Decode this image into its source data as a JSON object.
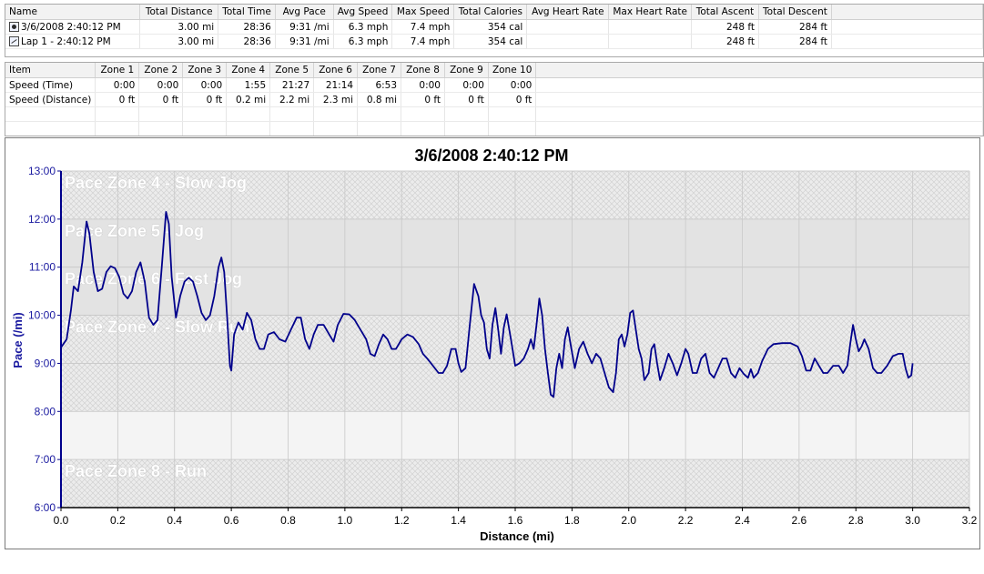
{
  "laps_table": {
    "columns": [
      "Name",
      "Total Distance",
      "Total Time",
      "Avg Pace",
      "Avg Speed",
      "Max Speed",
      "Total Calories",
      "Avg Heart Rate",
      "Max Heart Rate",
      "Total Ascent",
      "Total Descent"
    ],
    "rows": [
      {
        "icon": "run-icon",
        "name": "3/6/2008 2:40:12 PM",
        "total_distance": "3.00 mi",
        "total_time": "28:36",
        "avg_pace": "9:31 /mi",
        "avg_speed": "6.3 mph",
        "max_speed": "7.4 mph",
        "total_calories": "354 cal",
        "avg_heart_rate": "",
        "max_heart_rate": "",
        "total_ascent": "248 ft",
        "total_descent": "284 ft"
      },
      {
        "icon": "lap-icon",
        "name": "Lap 1 - 2:40:12 PM",
        "total_distance": "3.00 mi",
        "total_time": "28:36",
        "avg_pace": "9:31 /mi",
        "avg_speed": "6.3 mph",
        "max_speed": "7.4 mph",
        "total_calories": "354 cal",
        "avg_heart_rate": "",
        "max_heart_rate": "",
        "total_ascent": "248 ft",
        "total_descent": "284 ft"
      }
    ]
  },
  "zones_table": {
    "columns": [
      "Item",
      "Zone 1",
      "Zone 2",
      "Zone 3",
      "Zone 4",
      "Zone 5",
      "Zone 6",
      "Zone 7",
      "Zone 8",
      "Zone 9",
      "Zone 10"
    ],
    "rows": [
      {
        "item": "Speed (Time)",
        "values": [
          "0:00",
          "0:00",
          "0:00",
          "1:55",
          "21:27",
          "21:14",
          "6:53",
          "0:00",
          "0:00",
          "0:00"
        ]
      },
      {
        "item": "Speed (Distance)",
        "values": [
          "0 ft",
          "0 ft",
          "0 ft",
          "0.2 mi",
          "2.2 mi",
          "2.3 mi",
          "0.8 mi",
          "0 ft",
          "0 ft",
          "0 ft"
        ]
      }
    ]
  },
  "chart_data": {
    "type": "line",
    "title": "3/6/2008 2:40:12 PM",
    "xlabel": "Distance (mi)",
    "ylabel": "Pace (/mi)",
    "xlim": [
      0.0,
      3.2
    ],
    "ylim": [
      6.0,
      13.0
    ],
    "x_ticks": [
      "0.0",
      "0.2",
      "0.4",
      "0.6",
      "0.8",
      "1.0",
      "1.2",
      "1.4",
      "1.6",
      "1.8",
      "2.0",
      "2.2",
      "2.4",
      "2.6",
      "2.8",
      "3.0",
      "3.2"
    ],
    "x_tick_values": [
      0.0,
      0.2,
      0.4,
      0.6,
      0.8,
      1.0,
      1.2,
      1.4,
      1.6,
      1.8,
      2.0,
      2.2,
      2.4,
      2.6,
      2.8,
      3.0,
      3.2
    ],
    "y_ticks": [
      "6:00",
      "7:00",
      "8:00",
      "9:00",
      "10:00",
      "11:00",
      "12:00",
      "13:00"
    ],
    "y_tick_values": [
      6,
      7,
      8,
      9,
      10,
      11,
      12,
      13
    ],
    "grid": true,
    "zones": [
      {
        "label": "Pace Zone 4 - Slow Jog",
        "from": 12.0,
        "to": 13.0,
        "fill": "hatch"
      },
      {
        "label": "Pace Zone 5 - Jog",
        "from": 11.0,
        "to": 12.0,
        "fill": "solid"
      },
      {
        "label": "Pace Zone 6 - Fast Jog",
        "from": 10.0,
        "to": 11.0,
        "fill": "solid"
      },
      {
        "label": "Pace Zone 7 - Slow Run",
        "from": 8.0,
        "to": 10.0,
        "fill": "hatch"
      },
      {
        "label": "Pace Zone 8 - Run",
        "from": 6.0,
        "to": 7.0,
        "fill": "hatch"
      }
    ],
    "zone_fills": {
      "hatch": "#e9e9e9",
      "solid": "#e3e3e3",
      "stroke": "#c9c9c9"
    },
    "series": [
      {
        "color": "#00008b",
        "points": [
          [
            0.0,
            9.33
          ],
          [
            0.02,
            9.5
          ],
          [
            0.035,
            10.1
          ],
          [
            0.045,
            10.6
          ],
          [
            0.06,
            10.5
          ],
          [
            0.075,
            11.1
          ],
          [
            0.09,
            11.95
          ],
          [
            0.1,
            11.7
          ],
          [
            0.115,
            10.9
          ],
          [
            0.13,
            10.5
          ],
          [
            0.145,
            10.55
          ],
          [
            0.16,
            10.9
          ],
          [
            0.175,
            11.02
          ],
          [
            0.19,
            10.98
          ],
          [
            0.205,
            10.8
          ],
          [
            0.22,
            10.45
          ],
          [
            0.235,
            10.35
          ],
          [
            0.25,
            10.5
          ],
          [
            0.265,
            10.9
          ],
          [
            0.28,
            11.1
          ],
          [
            0.295,
            10.7
          ],
          [
            0.31,
            9.95
          ],
          [
            0.325,
            9.8
          ],
          [
            0.34,
            9.9
          ],
          [
            0.355,
            11.0
          ],
          [
            0.37,
            12.15
          ],
          [
            0.38,
            11.9
          ],
          [
            0.39,
            10.8
          ],
          [
            0.405,
            9.95
          ],
          [
            0.42,
            10.4
          ],
          [
            0.435,
            10.7
          ],
          [
            0.45,
            10.78
          ],
          [
            0.465,
            10.7
          ],
          [
            0.48,
            10.4
          ],
          [
            0.495,
            10.05
          ],
          [
            0.51,
            9.9
          ],
          [
            0.525,
            10.0
          ],
          [
            0.54,
            10.4
          ],
          [
            0.555,
            11.0
          ],
          [
            0.565,
            11.2
          ],
          [
            0.575,
            10.9
          ],
          [
            0.585,
            10.0
          ],
          [
            0.595,
            8.95
          ],
          [
            0.6,
            8.85
          ],
          [
            0.61,
            9.6
          ],
          [
            0.625,
            9.85
          ],
          [
            0.64,
            9.7
          ],
          [
            0.655,
            10.05
          ],
          [
            0.67,
            9.9
          ],
          [
            0.685,
            9.5
          ],
          [
            0.7,
            9.3
          ],
          [
            0.715,
            9.3
          ],
          [
            0.73,
            9.6
          ],
          [
            0.75,
            9.65
          ],
          [
            0.77,
            9.5
          ],
          [
            0.79,
            9.45
          ],
          [
            0.81,
            9.7
          ],
          [
            0.83,
            9.95
          ],
          [
            0.845,
            9.95
          ],
          [
            0.86,
            9.5
          ],
          [
            0.875,
            9.3
          ],
          [
            0.89,
            9.6
          ],
          [
            0.905,
            9.8
          ],
          [
            0.925,
            9.8
          ],
          [
            0.945,
            9.6
          ],
          [
            0.96,
            9.45
          ],
          [
            0.975,
            9.8
          ],
          [
            0.995,
            10.03
          ],
          [
            1.015,
            10.02
          ],
          [
            1.035,
            9.9
          ],
          [
            1.055,
            9.7
          ],
          [
            1.075,
            9.5
          ],
          [
            1.09,
            9.2
          ],
          [
            1.105,
            9.15
          ],
          [
            1.12,
            9.4
          ],
          [
            1.135,
            9.6
          ],
          [
            1.15,
            9.5
          ],
          [
            1.165,
            9.3
          ],
          [
            1.18,
            9.3
          ],
          [
            1.2,
            9.5
          ],
          [
            1.22,
            9.6
          ],
          [
            1.24,
            9.55
          ],
          [
            1.26,
            9.4
          ],
          [
            1.275,
            9.2
          ],
          [
            1.29,
            9.1
          ],
          [
            1.31,
            8.95
          ],
          [
            1.33,
            8.8
          ],
          [
            1.345,
            8.8
          ],
          [
            1.36,
            8.95
          ],
          [
            1.375,
            9.3
          ],
          [
            1.39,
            9.3
          ],
          [
            1.4,
            9.0
          ],
          [
            1.41,
            8.82
          ],
          [
            1.425,
            8.9
          ],
          [
            1.44,
            9.8
          ],
          [
            1.455,
            10.65
          ],
          [
            1.47,
            10.4
          ],
          [
            1.48,
            10.0
          ],
          [
            1.49,
            9.85
          ],
          [
            1.5,
            9.3
          ],
          [
            1.51,
            9.1
          ],
          [
            1.52,
            9.8
          ],
          [
            1.53,
            10.15
          ],
          [
            1.54,
            9.7
          ],
          [
            1.55,
            9.2
          ],
          [
            1.56,
            9.75
          ],
          [
            1.57,
            10.02
          ],
          [
            1.585,
            9.5
          ],
          [
            1.6,
            8.95
          ],
          [
            1.615,
            9.0
          ],
          [
            1.63,
            9.1
          ],
          [
            1.645,
            9.3
          ],
          [
            1.655,
            9.5
          ],
          [
            1.665,
            9.3
          ],
          [
            1.675,
            9.8
          ],
          [
            1.685,
            10.35
          ],
          [
            1.695,
            10.0
          ],
          [
            1.705,
            9.3
          ],
          [
            1.715,
            8.8
          ],
          [
            1.725,
            8.35
          ],
          [
            1.735,
            8.3
          ],
          [
            1.745,
            8.9
          ],
          [
            1.755,
            9.2
          ],
          [
            1.765,
            8.9
          ],
          [
            1.775,
            9.5
          ],
          [
            1.785,
            9.75
          ],
          [
            1.795,
            9.4
          ],
          [
            1.81,
            8.9
          ],
          [
            1.825,
            9.3
          ],
          [
            1.84,
            9.45
          ],
          [
            1.855,
            9.2
          ],
          [
            1.87,
            9.0
          ],
          [
            1.885,
            9.2
          ],
          [
            1.9,
            9.1
          ],
          [
            1.915,
            8.8
          ],
          [
            1.93,
            8.5
          ],
          [
            1.945,
            8.4
          ],
          [
            1.955,
            8.8
          ],
          [
            1.965,
            9.5
          ],
          [
            1.975,
            9.6
          ],
          [
            1.985,
            9.35
          ],
          [
            1.995,
            9.6
          ],
          [
            2.005,
            10.05
          ],
          [
            2.015,
            10.1
          ],
          [
            2.025,
            9.7
          ],
          [
            2.035,
            9.3
          ],
          [
            2.045,
            9.1
          ],
          [
            2.055,
            8.65
          ],
          [
            2.07,
            8.8
          ],
          [
            2.08,
            9.3
          ],
          [
            2.09,
            9.4
          ],
          [
            2.1,
            9.0
          ],
          [
            2.11,
            8.65
          ],
          [
            2.125,
            8.9
          ],
          [
            2.14,
            9.2
          ],
          [
            2.155,
            9.0
          ],
          [
            2.17,
            8.75
          ],
          [
            2.185,
            9.0
          ],
          [
            2.2,
            9.3
          ],
          [
            2.21,
            9.2
          ],
          [
            2.225,
            8.8
          ],
          [
            2.24,
            8.8
          ],
          [
            2.255,
            9.1
          ],
          [
            2.27,
            9.2
          ],
          [
            2.285,
            8.8
          ],
          [
            2.3,
            8.7
          ],
          [
            2.315,
            8.9
          ],
          [
            2.33,
            9.1
          ],
          [
            2.345,
            9.1
          ],
          [
            2.36,
            8.8
          ],
          [
            2.375,
            8.7
          ],
          [
            2.39,
            8.9
          ],
          [
            2.405,
            8.78
          ],
          [
            2.42,
            8.7
          ],
          [
            2.43,
            8.88
          ],
          [
            2.44,
            8.7
          ],
          [
            2.455,
            8.8
          ],
          [
            2.47,
            9.05
          ],
          [
            2.49,
            9.3
          ],
          [
            2.51,
            9.4
          ],
          [
            2.54,
            9.42
          ],
          [
            2.57,
            9.42
          ],
          [
            2.595,
            9.35
          ],
          [
            2.61,
            9.15
          ],
          [
            2.625,
            8.85
          ],
          [
            2.64,
            8.85
          ],
          [
            2.655,
            9.1
          ],
          [
            2.67,
            8.95
          ],
          [
            2.685,
            8.8
          ],
          [
            2.7,
            8.8
          ],
          [
            2.72,
            8.95
          ],
          [
            2.74,
            8.95
          ],
          [
            2.755,
            8.8
          ],
          [
            2.77,
            8.95
          ],
          [
            2.78,
            9.4
          ],
          [
            2.79,
            9.8
          ],
          [
            2.8,
            9.5
          ],
          [
            2.81,
            9.25
          ],
          [
            2.82,
            9.35
          ],
          [
            2.83,
            9.5
          ],
          [
            2.845,
            9.3
          ],
          [
            2.86,
            8.9
          ],
          [
            2.875,
            8.8
          ],
          [
            2.89,
            8.8
          ],
          [
            2.91,
            8.95
          ],
          [
            2.93,
            9.15
          ],
          [
            2.95,
            9.2
          ],
          [
            2.965,
            9.2
          ],
          [
            2.975,
            8.9
          ],
          [
            2.985,
            8.7
          ],
          [
            2.995,
            8.75
          ],
          [
            3.0,
            9.0
          ]
        ]
      }
    ]
  }
}
